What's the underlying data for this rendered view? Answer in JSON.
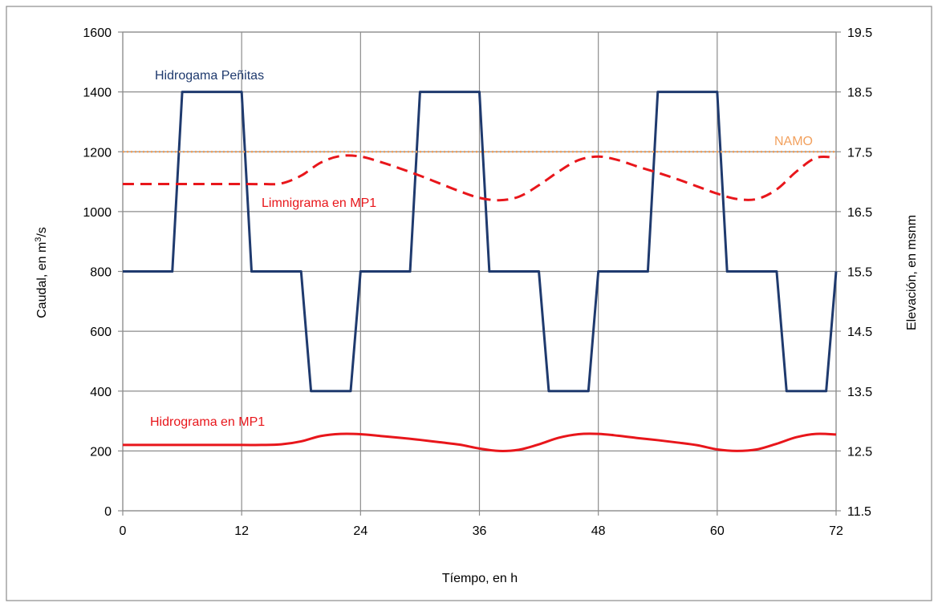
{
  "chart_data": {
    "type": "line",
    "xlabel": "Tíempo, en h",
    "ylabel_left_prefix": "Caudal, en m",
    "ylabel_left_sup": "3",
    "ylabel_left_suffix": "/s",
    "ylabel_right": "Elevación, en msnm",
    "xlim": [
      0,
      72
    ],
    "ylim_left": [
      0,
      1600
    ],
    "ylim_right": [
      11.5,
      19.5
    ],
    "x_ticks": [
      "0",
      "12",
      "24",
      "36",
      "48",
      "60",
      "72"
    ],
    "y_left_ticks": [
      "0",
      "200",
      "400",
      "600",
      "800",
      "1000",
      "1200",
      "1400",
      "1600"
    ],
    "y_right_ticks": [
      "11.5",
      "12.5",
      "13.5",
      "14.5",
      "15.5",
      "16.5",
      "17.5",
      "18.5",
      "19.5"
    ],
    "grid": true,
    "colors": {
      "hidrograma_penitas": "#1f3a6e",
      "limnigrama_mp1": "#e8161b",
      "hidrograma_mp1": "#e8161b",
      "namo": "#f2a15e",
      "grid": "#8c8c8c",
      "annotation_penitas": "#1f3a6e",
      "annotation_red": "#e8161b",
      "annotation_namo": "#f2a15e"
    },
    "series": [
      {
        "name": "Hidrogama Peñitas",
        "axis": "left",
        "style": "solid",
        "x": [
          0,
          5,
          6,
          12,
          13,
          18,
          19,
          23,
          24,
          29,
          30,
          36,
          37,
          42,
          43,
          47,
          48,
          53,
          54,
          60,
          61,
          66,
          67,
          71,
          72
        ],
        "y": [
          800,
          800,
          1400,
          1400,
          800,
          800,
          400,
          400,
          800,
          800,
          1400,
          1400,
          800,
          800,
          400,
          400,
          800,
          800,
          1400,
          1400,
          800,
          800,
          400,
          400,
          800
        ]
      },
      {
        "name": "Limnigrama en MP1",
        "axis": "right",
        "style": "dashed",
        "x": [
          0,
          4,
          8,
          12,
          14,
          16,
          18,
          20,
          22,
          24,
          26,
          28,
          30,
          32,
          34,
          36,
          38,
          40,
          42,
          44,
          46,
          48,
          50,
          52,
          54,
          56,
          58,
          60,
          62,
          64,
          66,
          68,
          70,
          72
        ],
        "y": [
          16.96,
          16.96,
          16.96,
          16.96,
          16.96,
          16.97,
          17.1,
          17.32,
          17.43,
          17.42,
          17.33,
          17.22,
          17.1,
          16.97,
          16.84,
          16.73,
          16.69,
          16.75,
          16.94,
          17.17,
          17.36,
          17.42,
          17.36,
          17.25,
          17.15,
          17.04,
          16.92,
          16.8,
          16.71,
          16.71,
          16.87,
          17.17,
          17.4,
          17.4
        ]
      },
      {
        "name": "Hidrograma en MP1",
        "axis": "left",
        "style": "solid",
        "x": [
          0,
          4,
          8,
          12,
          14,
          16,
          18,
          20,
          22,
          24,
          26,
          28,
          30,
          32,
          34,
          36,
          38,
          40,
          42,
          44,
          46,
          48,
          50,
          52,
          54,
          56,
          58,
          60,
          62,
          64,
          66,
          68,
          70,
          72
        ],
        "y": [
          220,
          220,
          220,
          220,
          220,
          222,
          232,
          250,
          257,
          256,
          250,
          244,
          237,
          229,
          221,
          208,
          200,
          204,
          222,
          244,
          256,
          257,
          251,
          243,
          236,
          228,
          219,
          205,
          200,
          205,
          224,
          246,
          257,
          255
        ]
      },
      {
        "name": "NAMO",
        "axis": "right",
        "style": "dotted",
        "x": [
          0,
          72
        ],
        "y": [
          17.5,
          17.5
        ]
      }
    ],
    "annotations": [
      {
        "text": "Hidrogama Peñitas",
        "color_key": "annotation_penitas"
      },
      {
        "text": "NAMO",
        "color_key": "annotation_namo"
      },
      {
        "text": "Limnigrama en MP1",
        "color_key": "annotation_red"
      },
      {
        "text": "Hidrograma en MP1",
        "color_key": "annotation_red"
      }
    ]
  }
}
